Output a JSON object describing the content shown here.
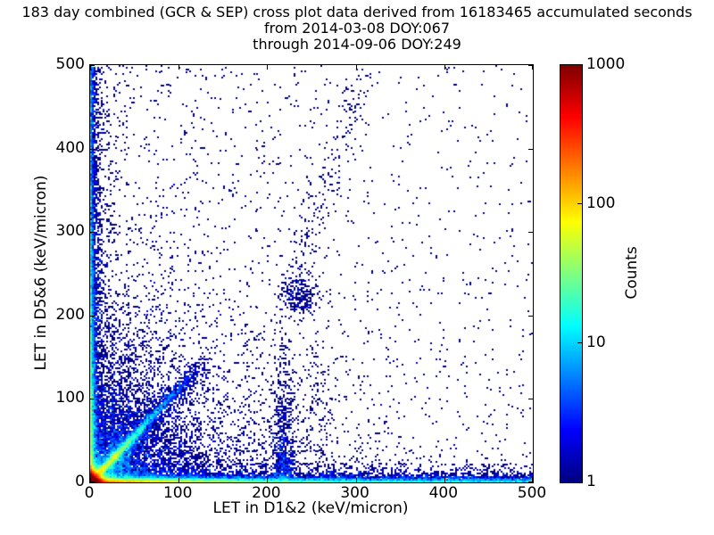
{
  "chart_data": {
    "type": "scatter",
    "subtype": "2d-density-cross-plot",
    "title_line1": "183 day combined (GCR & SEP) cross plot data derived from 16183465 accumulated seconds",
    "title_line2": "from 2014-03-08 DOY:067",
    "title_line3": "through 2014-09-06 DOY:249",
    "xlabel": "LET in D1&2 (keV/micron)",
    "ylabel": "LET in D5&6 (keV/micron)",
    "xlim": [
      0,
      500
    ],
    "ylim": [
      0,
      500
    ],
    "x_ticks": [
      0,
      100,
      200,
      300,
      400,
      500
    ],
    "y_ticks": [
      0,
      100,
      200,
      300,
      400,
      500
    ],
    "grid": false,
    "legend": "none",
    "point_color_min": "#000080",
    "colorbar": {
      "label": "Counts",
      "scale": "log",
      "ticks": [
        1,
        10,
        100,
        1000
      ],
      "range": [
        1,
        1000
      ],
      "colormap": "jet",
      "colormap_stops": [
        "#000080",
        "#0000ff",
        "#00ffff",
        "#ffff00",
        "#ff0000",
        "#800000"
      ]
    },
    "density_model": {
      "seed": 20140308,
      "bins_per_axis": 250,
      "log_color_max_exponent": 3,
      "components": [
        {
          "name": "origin-hotspot",
          "n": 60000,
          "x": {
            "d": "exp",
            "s": 3.2
          },
          "y": {
            "d": "exp",
            "s": 3.2
          }
        },
        {
          "name": "bottom-band-near",
          "n": 12000,
          "x": {
            "d": "exp",
            "s": 90,
            "max": 500
          },
          "y": {
            "d": "exp",
            "s": 2.2
          }
        },
        {
          "name": "bottom-band-far",
          "n": 4500,
          "x": {
            "d": "uniform",
            "a": 0,
            "b": 500
          },
          "y": {
            "d": "exp",
            "s": 2.6
          }
        },
        {
          "name": "bottom-fringe",
          "n": 2500,
          "x": {
            "d": "uniform",
            "a": 0,
            "b": 500
          },
          "y": {
            "d": "exp",
            "s": 7
          }
        },
        {
          "name": "left-band",
          "n": 4500,
          "x": {
            "d": "exp",
            "s": 2.2
          },
          "y": {
            "d": "exp",
            "s": 110,
            "max": 500
          }
        },
        {
          "name": "left-band-uniform",
          "n": 1600,
          "x": {
            "d": "exp",
            "s": 2.0
          },
          "y": {
            "d": "uniform",
            "a": 0,
            "b": 500
          }
        },
        {
          "name": "left-fringe",
          "n": 1200,
          "x": {
            "d": "exp",
            "s": 7
          },
          "y": {
            "d": "uniform",
            "a": 0,
            "b": 500
          }
        },
        {
          "name": "diagonal-streak",
          "n": 6000,
          "t": {
            "d": "exp",
            "s": 26,
            "max": 120
          },
          "slope": 1.12,
          "sx": 2.2,
          "sy": 2.2
        },
        {
          "name": "diagonal-blob",
          "n": 240,
          "x": {
            "d": "norm",
            "m": 28,
            "s": 2.4
          },
          "y": {
            "d": "norm",
            "m": 32,
            "s": 2.4
          }
        },
        {
          "name": "diagonal-halo",
          "n": 2600,
          "t": {
            "d": "exp",
            "s": 45,
            "max": 130
          },
          "slope": 1.1,
          "sx": 7,
          "sy": 7
        },
        {
          "name": "near-quadrant-diffuse",
          "n": 5200,
          "x": {
            "d": "exp",
            "s": 55
          },
          "y": {
            "d": "exp",
            "s": 55
          }
        },
        {
          "name": "wide-diffuse",
          "n": 1700,
          "x": {
            "d": "exp",
            "s": 130
          },
          "y": {
            "d": "exp",
            "s": 130
          }
        },
        {
          "name": "striation-1",
          "n": 280,
          "x": {
            "d": "norm",
            "m": 25,
            "s": 1.3
          },
          "y": {
            "d": "exp",
            "s": 55,
            "max": 210
          }
        },
        {
          "name": "striation-2",
          "n": 240,
          "x": {
            "d": "norm",
            "m": 34,
            "s": 1.3
          },
          "y": {
            "d": "exp",
            "s": 60,
            "max": 210
          }
        },
        {
          "name": "striation-3",
          "n": 200,
          "x": {
            "d": "norm",
            "m": 43,
            "s": 1.4
          },
          "y": {
            "d": "exp",
            "s": 65,
            "max": 220
          }
        },
        {
          "name": "plume-220",
          "n": 750,
          "x": {
            "d": "norm",
            "m": 219,
            "s": 6
          },
          "y": {
            "d": "exp",
            "s": 55,
            "max": 185
          }
        },
        {
          "name": "mid-blob",
          "n": 270,
          "x": {
            "d": "norm",
            "m": 236,
            "s": 11
          },
          "y": {
            "d": "norm",
            "m": 224,
            "s": 13
          }
        },
        {
          "name": "rising-trail",
          "n": 170,
          "line": {
            "x0": 233,
            "y0": 248,
            "x1": 308,
            "y1": 488
          },
          "sx": 9,
          "sy": 8
        },
        {
          "name": "lower-trail",
          "n": 130,
          "x": {
            "d": "norm",
            "m": 255,
            "s": 13
          },
          "y": {
            "d": "uniform",
            "a": 0,
            "b": 160
          }
        },
        {
          "name": "background-uniform",
          "n": 800,
          "x": {
            "d": "uniform",
            "a": 0,
            "b": 500
          },
          "y": {
            "d": "uniform",
            "a": 0,
            "b": 500
          }
        },
        {
          "name": "background-left",
          "n": 520,
          "x": {
            "d": "exp",
            "s": 140
          },
          "y": {
            "d": "uniform",
            "a": 0,
            "b": 500
          }
        }
      ]
    }
  }
}
